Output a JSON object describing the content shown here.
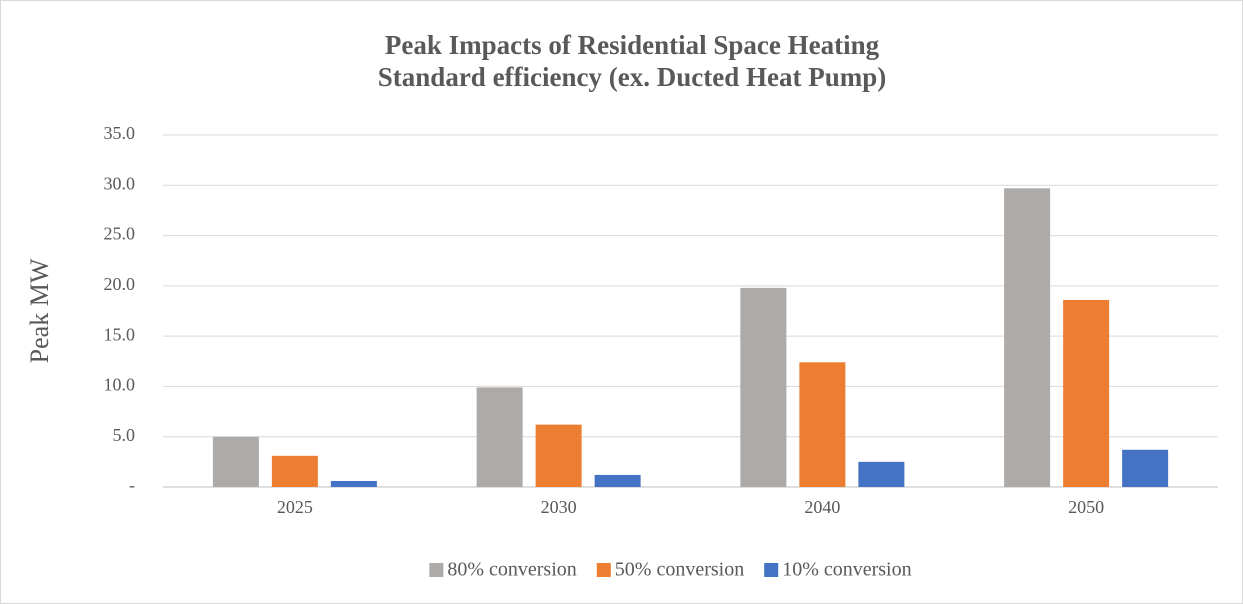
{
  "chart_data": {
    "type": "bar",
    "title": "Peak Impacts of Residential Space Heating",
    "subtitle": "Standard efficiency (ex. Ducted Heat Pump)",
    "y_label": "Peak MW",
    "categories": [
      "2025",
      "2030",
      "2040",
      "2050"
    ],
    "series": [
      {
        "name": "80% conversion",
        "color": "#ADAAA7",
        "values": [
          5.0,
          9.9,
          19.8,
          29.7
        ]
      },
      {
        "name": "50% conversion",
        "color": "#ED7D31",
        "values": [
          3.1,
          6.2,
          12.4,
          18.6
        ]
      },
      {
        "name": "10% conversion",
        "color": "#4472C4",
        "values": [
          0.6,
          1.2,
          2.5,
          3.7
        ]
      }
    ],
    "ylim": [
      0,
      35
    ],
    "yticks": [
      {
        "value": 0,
        "label": "-"
      },
      {
        "value": 5,
        "label": "5.0"
      },
      {
        "value": 10,
        "label": "10.0"
      },
      {
        "value": 15,
        "label": "15.0"
      },
      {
        "value": 20,
        "label": "20.0"
      },
      {
        "value": 25,
        "label": "25.0"
      },
      {
        "value": 30,
        "label": "30.0"
      },
      {
        "value": 35,
        "label": "35.0"
      }
    ],
    "grid": true,
    "legend": "bottom"
  }
}
